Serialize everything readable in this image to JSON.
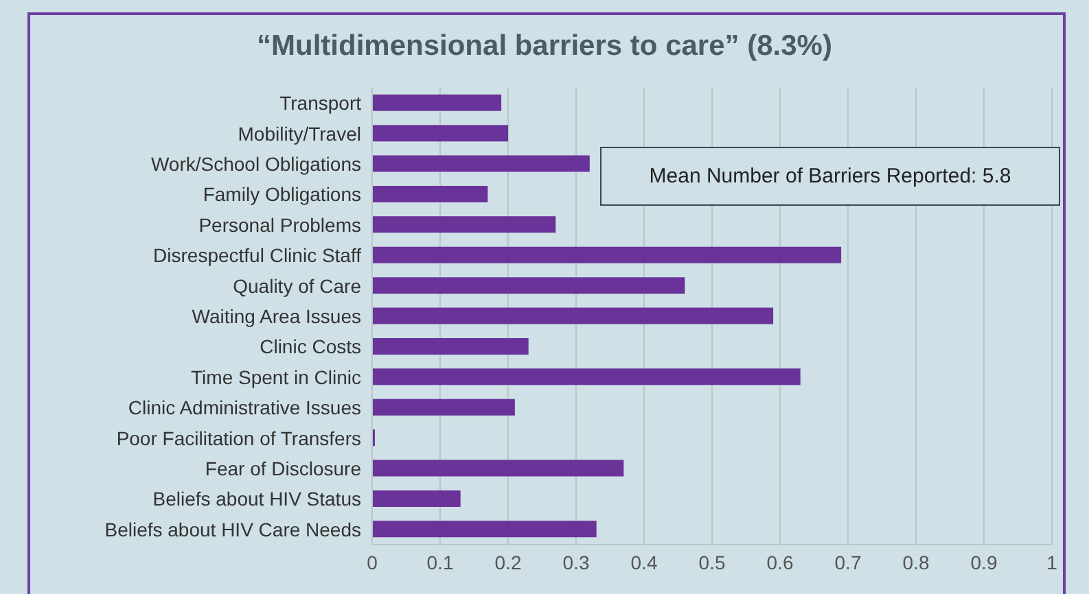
{
  "chart_data": {
    "type": "bar",
    "orientation": "horizontal",
    "title": "“Multidimensional barriers to care” (8.3%)",
    "categories": [
      "Transport",
      "Mobility/Travel",
      "Work/School Obligations",
      "Family Obligations",
      "Personal Problems",
      "Disrespectful Clinic Staff",
      "Quality of Care",
      "Waiting Area Issues",
      "Clinic Costs",
      "Time Spent in Clinic",
      "Clinic Administrative Issues",
      "Poor Facilitation of Transfers",
      "Fear of Disclosure",
      "Beliefs about HIV Status",
      "Beliefs about HIV Care Needs"
    ],
    "values": [
      0.19,
      0.2,
      0.32,
      0.17,
      0.27,
      0.69,
      0.46,
      0.59,
      0.23,
      0.63,
      0.21,
      0.004,
      0.37,
      0.13,
      0.33
    ],
    "color": "#6a3399",
    "xlim": [
      0,
      1
    ],
    "xticks": [
      0,
      0.1,
      0.2,
      0.3,
      0.4,
      0.5,
      0.6,
      0.7,
      0.8,
      0.9,
      1
    ],
    "grid": "x",
    "annotations": [
      "Mean Number of Barriers Reported: 5.8"
    ]
  }
}
